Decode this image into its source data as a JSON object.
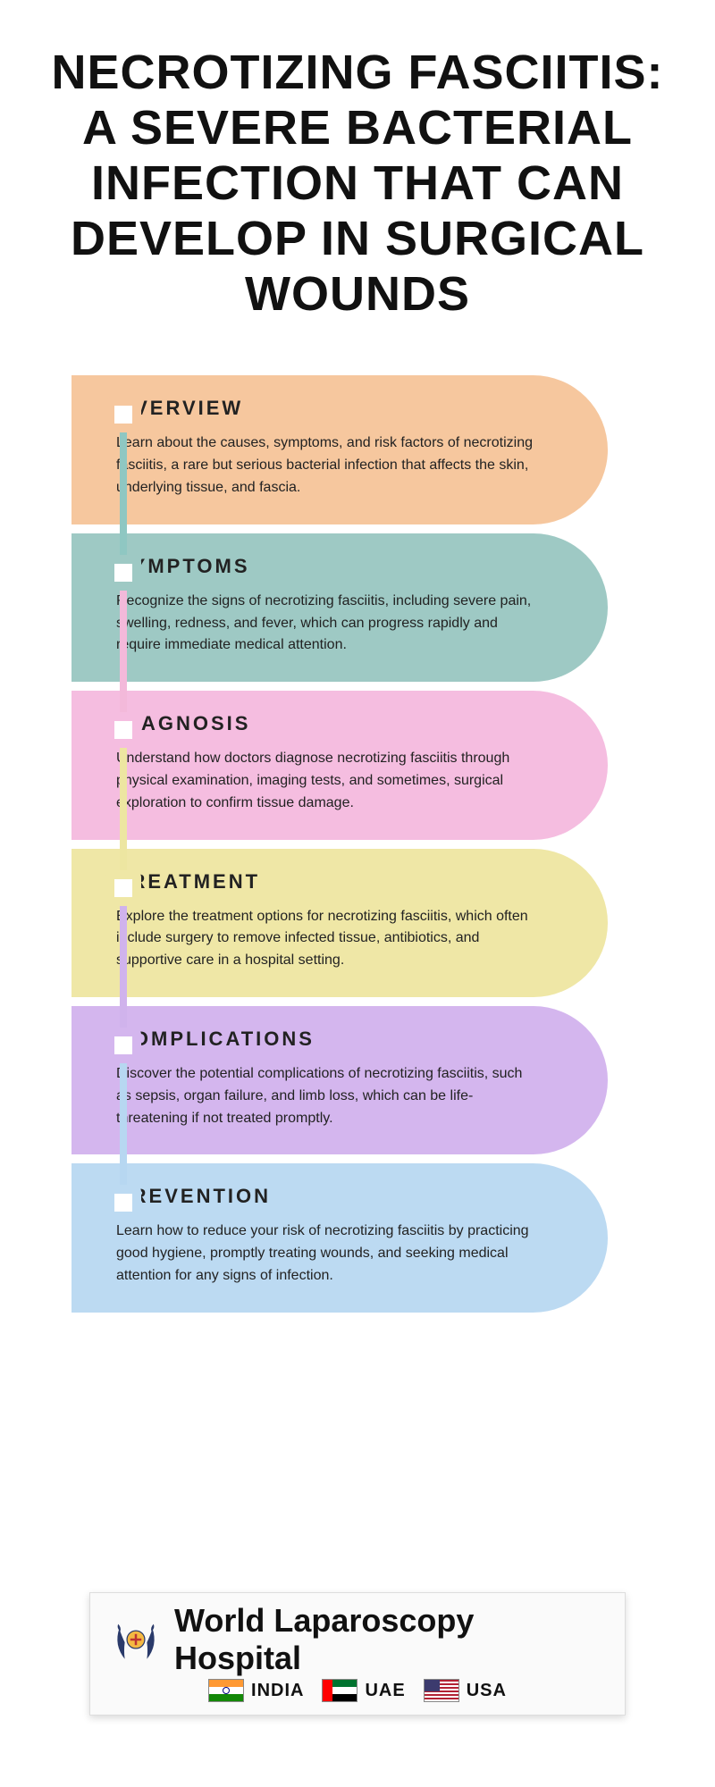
{
  "title": "NECROTIZING FASCIITIS: A SEVERE BACTERIAL INFECTION THAT CAN DEVELOP IN SURGICAL WOUNDS",
  "title_fontsize": 54,
  "title_color": "#111111",
  "background_color": "#ffffff",
  "sections": [
    {
      "heading": "OVERVIEW",
      "body": "Learn about the causes, symptoms, and risk factors of necrotizing fasciitis, a rare but serious bacterial infection that affects the skin, underlying tissue, and fascia.",
      "pill_color": "#f6c79e",
      "marker_border_color": "#f6c79e",
      "connector_color": "#8fc7c2"
    },
    {
      "heading": "SYMPTOMS",
      "body": "Recognize the signs of necrotizing fasciitis, including severe pain, swelling, redness, and fever, which can progress rapidly and require immediate medical attention.",
      "pill_color": "#9ec9c4",
      "marker_border_color": "#9ec9c4",
      "connector_color": "#f3b9da"
    },
    {
      "heading": "DIAGNOSIS",
      "body": "Understand how doctors diagnose necrotizing fasciitis through physical examination, imaging tests, and sometimes, surgical exploration to confirm tissue damage.",
      "pill_color": "#f5bde0",
      "marker_border_color": "#f5bde0",
      "connector_color": "#ede6a1"
    },
    {
      "heading": "TREATMENT",
      "body": "Explore the treatment options for necrotizing fasciitis, which often include surgery to remove infected tissue, antibiotics, and supportive care in a hospital setting.",
      "pill_color": "#efe7a6",
      "marker_border_color": "#efe7a6",
      "connector_color": "#d0b3ec"
    },
    {
      "heading": "COMPLICATIONS",
      "body": "Discover the potential complications of necrotizing fasciitis, such as sepsis, organ failure, and limb loss, which can be life-threatening if not treated promptly.",
      "pill_color": "#d4b6ee",
      "marker_border_color": "#d4b6ee",
      "connector_color": "#b7d7f1"
    },
    {
      "heading": "PREVENTION",
      "body": "Learn how to reduce your risk of necrotizing fasciitis by practicing good hygiene, promptly treating wounds, and seeking medical attention for any signs of infection.",
      "pill_color": "#bcdaf2",
      "marker_border_color": "#bcdaf2",
      "connector_color": "#bcdaf2"
    }
  ],
  "section_heading_fontsize": 22,
  "section_body_fontsize": 16,
  "pill_width": 600,
  "marker_size": 40,
  "marker_border_width": 10,
  "connector_width": 8,
  "footer": {
    "org_name": "World Laparoscopy Hospital",
    "countries": [
      {
        "name": "INDIA",
        "flag_colors": [
          "#ff9933",
          "#ffffff",
          "#138808"
        ],
        "flag_type": "tricolor_h"
      },
      {
        "name": "UAE",
        "flag_colors": [
          "#ff0000",
          "#00732f",
          "#ffffff",
          "#000000"
        ],
        "flag_type": "uae"
      },
      {
        "name": "USA",
        "flag_colors": [
          "#b22234",
          "#ffffff",
          "#3c3b6e"
        ],
        "flag_type": "usa"
      }
    ]
  }
}
